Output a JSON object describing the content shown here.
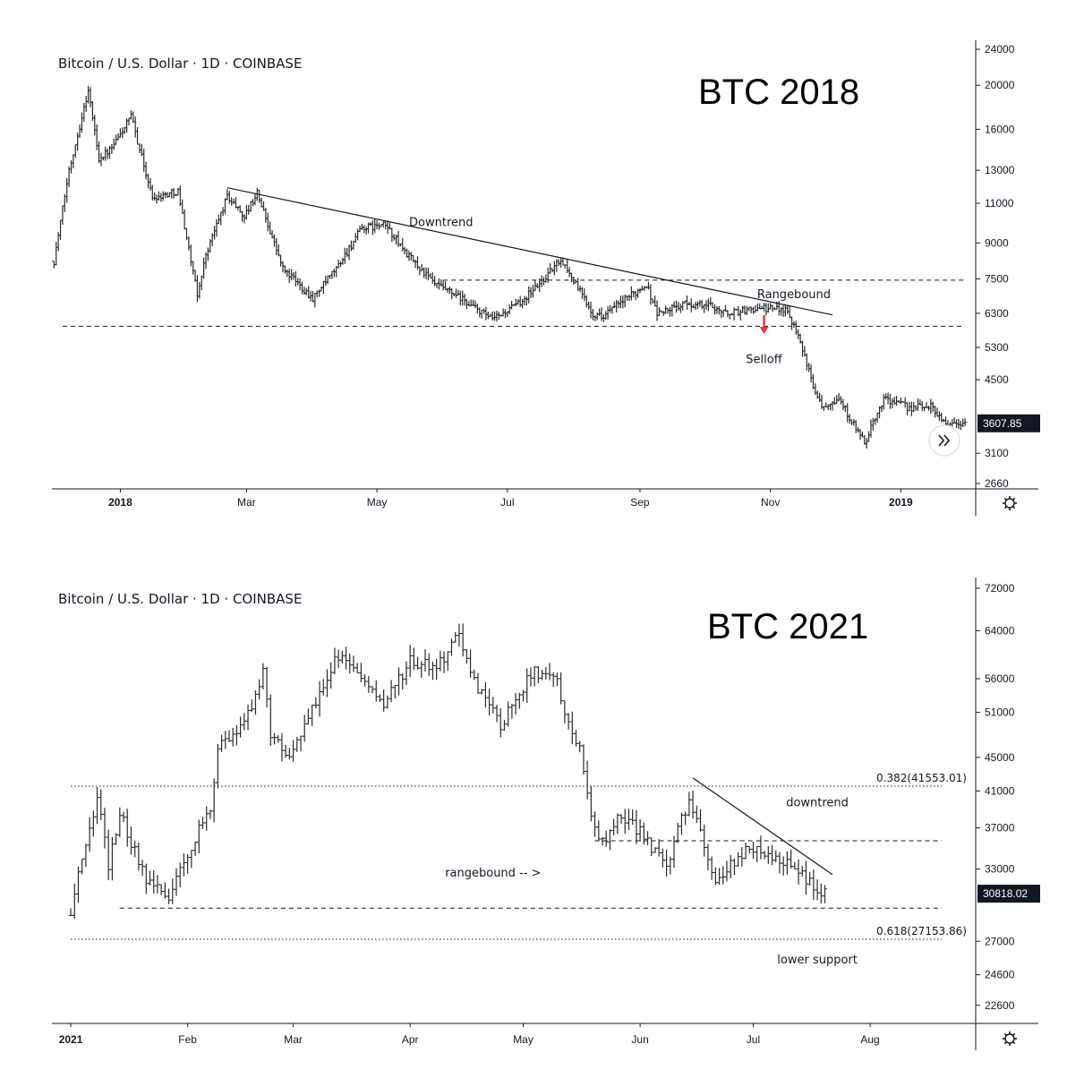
{
  "chart_data": [
    {
      "type": "ohlc",
      "header": "Bitcoin / U.S. Dollar · 1D · COINBASE",
      "big_label": "BTC 2018",
      "x_labels": [
        "2018",
        "Mar",
        "May",
        "Jul",
        "Sep",
        "Nov",
        "2019"
      ],
      "bold_x_labels": [
        "2018",
        "2019"
      ],
      "y_ticks": [
        24000,
        20000,
        16000,
        13000,
        11000,
        9000,
        7500,
        6300,
        5300,
        4500,
        3100,
        2660
      ],
      "y_scale": "log",
      "y_range": [
        2660,
        24000
      ],
      "last_price": "3607.85",
      "levels": [
        {
          "name": "support",
          "value": 5900,
          "style": "dashed",
          "from": "2017-12-05",
          "to": "2019-01-31"
        },
        {
          "name": "range-top",
          "value": 7450,
          "style": "dashed",
          "from": "2018-06-01",
          "to": "2019-01-31"
        }
      ],
      "trendlines": [
        {
          "name": "downtrend",
          "from": [
            "2018-02-20",
            11900
          ],
          "to": [
            "2018-11-30",
            6250
          ]
        }
      ],
      "annotations": [
        {
          "text": "Downtrend",
          "at": [
            "2018-05-31",
            9800
          ]
        },
        {
          "text": "Rangebound",
          "at": [
            "2018-11-12",
            6800
          ]
        },
        {
          "text": "Selloff",
          "at": [
            "2018-10-29",
            4900
          ]
        }
      ],
      "arrow": {
        "at": [
          "2018-10-29",
          5700
        ],
        "color": "#e53935"
      },
      "series": [
        {
          "x": "2017-12-01",
          "y": 8200
        },
        {
          "x": "2017-12-08",
          "y": 13000
        },
        {
          "x": "2017-12-17",
          "y": 19500
        },
        {
          "x": "2017-12-22",
          "y": 13800
        },
        {
          "x": "2017-12-28",
          "y": 14500
        },
        {
          "x": "2018-01-06",
          "y": 17100
        },
        {
          "x": "2018-01-16",
          "y": 11300
        },
        {
          "x": "2018-01-28",
          "y": 11700
        },
        {
          "x": "2018-02-06",
          "y": 6900
        },
        {
          "x": "2018-02-10",
          "y": 8500
        },
        {
          "x": "2018-02-20",
          "y": 11400
        },
        {
          "x": "2018-02-28",
          "y": 10300
        },
        {
          "x": "2018-03-06",
          "y": 11600
        },
        {
          "x": "2018-03-18",
          "y": 7900
        },
        {
          "x": "2018-04-01",
          "y": 6800
        },
        {
          "x": "2018-04-12",
          "y": 7900
        },
        {
          "x": "2018-04-24",
          "y": 9700
        },
        {
          "x": "2018-05-05",
          "y": 9850
        },
        {
          "x": "2018-05-15",
          "y": 8500
        },
        {
          "x": "2018-05-28",
          "y": 7300
        },
        {
          "x": "2018-06-10",
          "y": 6750
        },
        {
          "x": "2018-06-24",
          "y": 6100
        },
        {
          "x": "2018-07-06",
          "y": 6600
        },
        {
          "x": "2018-07-17",
          "y": 7400
        },
        {
          "x": "2018-07-26",
          "y": 8300
        },
        {
          "x": "2018-08-10",
          "y": 6300
        },
        {
          "x": "2018-08-14",
          "y": 6200
        },
        {
          "x": "2018-08-24",
          "y": 6700
        },
        {
          "x": "2018-09-04",
          "y": 7300
        },
        {
          "x": "2018-09-09",
          "y": 6300
        },
        {
          "x": "2018-09-22",
          "y": 6600
        },
        {
          "x": "2018-10-05",
          "y": 6550
        },
        {
          "x": "2018-10-11",
          "y": 6300
        },
        {
          "x": "2018-10-25",
          "y": 6450
        },
        {
          "x": "2018-11-08",
          "y": 6450
        },
        {
          "x": "2018-11-14",
          "y": 5700
        },
        {
          "x": "2018-11-20",
          "y": 4500
        },
        {
          "x": "2018-11-25",
          "y": 3950
        },
        {
          "x": "2018-12-03",
          "y": 4100
        },
        {
          "x": "2018-12-15",
          "y": 3250
        },
        {
          "x": "2018-12-24",
          "y": 4100
        },
        {
          "x": "2019-01-05",
          "y": 3900
        },
        {
          "x": "2019-01-15",
          "y": 3950
        },
        {
          "x": "2019-01-22",
          "y": 3600
        },
        {
          "x": "2019-01-31",
          "y": 3607.85
        }
      ]
    },
    {
      "type": "ohlc",
      "header": "Bitcoin / U.S. Dollar · 1D · COINBASE",
      "big_label": "BTC 2021",
      "x_labels": [
        "2021",
        "Feb",
        "Mar",
        "Apr",
        "May",
        "Jun",
        "Jul",
        "Aug"
      ],
      "bold_x_labels": [
        "2021"
      ],
      "y_ticks": [
        72000,
        64000,
        56000,
        51000,
        45000,
        41000,
        37000,
        33000,
        27000,
        24600,
        22600
      ],
      "y_scale": "log",
      "y_range": [
        20600,
        72000
      ],
      "last_price": "30818.02",
      "levels": [
        {
          "name": "fib-0.382",
          "value": 41553.01,
          "style": "dotted",
          "label": "0.382(41553.01)",
          "from": "2021-01-01",
          "to": "2021-08-20"
        },
        {
          "name": "fib-0.618",
          "value": 27153.86,
          "style": "dotted",
          "label": "0.618(27153.86)",
          "from": "2021-01-01",
          "to": "2021-08-20"
        },
        {
          "name": "range-bottom",
          "value": 29600,
          "style": "dashed",
          "from": "2021-01-14",
          "to": "2021-08-20"
        },
        {
          "name": "range-top",
          "value": 35700,
          "style": "dashed",
          "from": "2021-05-20",
          "to": "2021-08-20"
        }
      ],
      "trendlines": [
        {
          "name": "downtrend",
          "from": [
            "2021-06-15",
            42500
          ],
          "to": [
            "2021-07-22",
            32500
          ]
        }
      ],
      "annotations": [
        {
          "text": "downtrend",
          "at": [
            "2021-07-18",
            39300
          ]
        },
        {
          "text": "rangebound -- >",
          "at": [
            "2021-04-23",
            32300
          ]
        },
        {
          "text": "lower support",
          "at": [
            "2021-07-18",
            25400
          ]
        }
      ],
      "series": [
        {
          "x": "2021-01-01",
          "y": 29000
        },
        {
          "x": "2021-01-03",
          "y": 32500
        },
        {
          "x": "2021-01-08",
          "y": 40500
        },
        {
          "x": "2021-01-11",
          "y": 33500
        },
        {
          "x": "2021-01-14",
          "y": 38500
        },
        {
          "x": "2021-01-21",
          "y": 32000
        },
        {
          "x": "2021-01-27",
          "y": 30500
        },
        {
          "x": "2021-02-01",
          "y": 34500
        },
        {
          "x": "2021-02-07",
          "y": 39000
        },
        {
          "x": "2021-02-09",
          "y": 46000
        },
        {
          "x": "2021-02-16",
          "y": 49000
        },
        {
          "x": "2021-02-21",
          "y": 57500
        },
        {
          "x": "2021-02-23",
          "y": 48000
        },
        {
          "x": "2021-02-28",
          "y": 45000
        },
        {
          "x": "2021-03-13",
          "y": 60000
        },
        {
          "x": "2021-03-25",
          "y": 52000
        },
        {
          "x": "2021-04-01",
          "y": 58800
        },
        {
          "x": "2021-04-08",
          "y": 58000
        },
        {
          "x": "2021-04-14",
          "y": 63000
        },
        {
          "x": "2021-04-18",
          "y": 55500
        },
        {
          "x": "2021-04-25",
          "y": 49000
        },
        {
          "x": "2021-05-03",
          "y": 57000
        },
        {
          "x": "2021-05-10",
          "y": 56500
        },
        {
          "x": "2021-05-12",
          "y": 50000
        },
        {
          "x": "2021-05-16",
          "y": 46500
        },
        {
          "x": "2021-05-19",
          "y": 38000
        },
        {
          "x": "2021-05-23",
          "y": 35000
        },
        {
          "x": "2021-05-26",
          "y": 39000
        },
        {
          "x": "2021-06-01",
          "y": 36500
        },
        {
          "x": "2021-06-08",
          "y": 33500
        },
        {
          "x": "2021-06-14",
          "y": 40000
        },
        {
          "x": "2021-06-21",
          "y": 32000
        },
        {
          "x": "2021-06-30",
          "y": 35000
        },
        {
          "x": "2021-07-06",
          "y": 34000
        },
        {
          "x": "2021-07-12",
          "y": 33000
        },
        {
          "x": "2021-07-20",
          "y": 30818.02
        }
      ]
    }
  ]
}
